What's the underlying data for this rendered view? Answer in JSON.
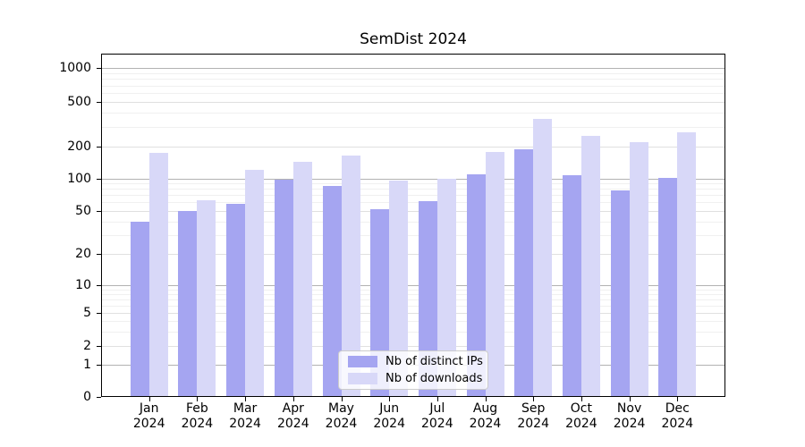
{
  "chart_data": {
    "type": "bar",
    "title": "SemDist 2024",
    "categories": [
      "Jan\n2024",
      "Feb\n2024",
      "Mar\n2024",
      "Apr\n2024",
      "May\n2024",
      "Jun\n2024",
      "Jul\n2024",
      "Aug\n2024",
      "Sep\n2024",
      "Oct\n2024",
      "Nov\n2024",
      "Dec\n2024"
    ],
    "series": [
      {
        "name": "Nb of distinct IPs",
        "color": "#a5a5f1",
        "values": [
          40,
          50,
          58,
          97,
          85,
          52,
          62,
          110,
          188,
          108,
          78,
          101
        ]
      },
      {
        "name": "Nb of downloads",
        "color": "#d8d8f8",
        "values": [
          175,
          63,
          121,
          144,
          164,
          95,
          100,
          176,
          355,
          250,
          218,
          270
        ]
      }
    ],
    "xlabel": "",
    "ylabel": "",
    "yscale": "symlog",
    "yticks": [
      0,
      1,
      2,
      5,
      10,
      20,
      50,
      100,
      200,
      500,
      1000
    ],
    "ylim": [
      0,
      1340
    ],
    "grid": "horizontal",
    "legend_position": "lower center"
  }
}
